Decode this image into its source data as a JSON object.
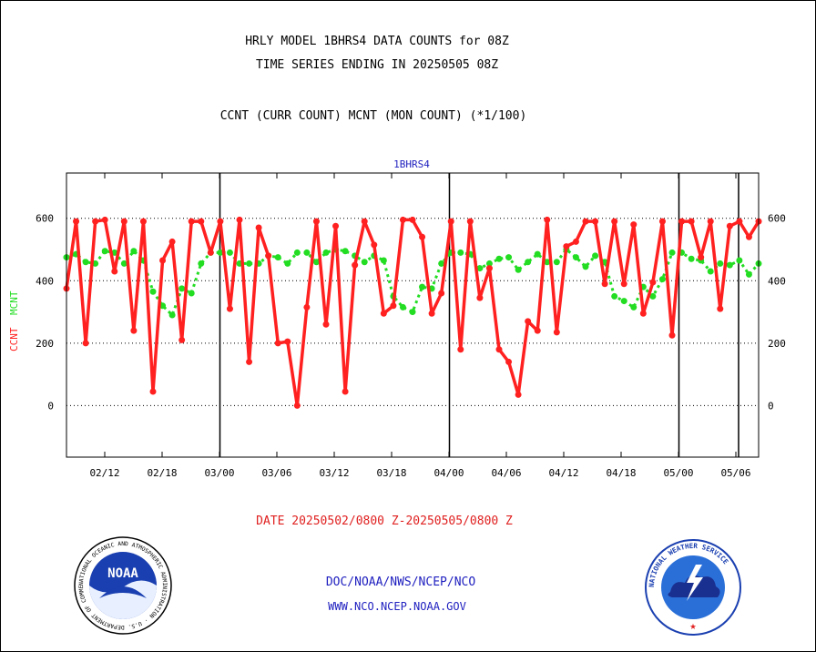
{
  "header": {
    "title_line1": "HRLY MODEL 1BHRS4 DATA COUNTS for 08Z",
    "title_line2": "TIME SERIES ENDING IN 20250505 08Z",
    "subtitle": "CCNT (CURR COUNT) MCNT (MON COUNT) (*1/100)"
  },
  "footer": {
    "date_range": "DATE 20250502/0800 Z-20250505/0800 Z",
    "org_line": "DOC/NOAA/NWS/NCEP/NCO",
    "url_line": "WWW.NCO.NCEP.NOAA.GOV"
  },
  "logos": {
    "noaa_text": "NOAA",
    "noaa_ring_text": "NATIONAL OCEANIC AND ATMOSPHERIC ADMINISTRATION · U.S. DEPARTMENT OF COMMERCE",
    "nws_ring_text": "NATIONAL WEATHER SERVICE"
  },
  "colors": {
    "ccnt": "#ff2020",
    "mcnt": "#22dd22",
    "title_blue": "#2020c0",
    "footer_red": "#e02020"
  },
  "chart_data": {
    "type": "line",
    "title": "1BHRS4",
    "ylabel_left": [
      "CCNT",
      "MCNT"
    ],
    "ylim": [
      -165,
      745
    ],
    "yticks": [
      0,
      200,
      400,
      600
    ],
    "grid": "dotted horizontal",
    "xticks": [
      "02/12",
      "02/18",
      "03/00",
      "03/06",
      "03/12",
      "03/18",
      "04/00",
      "04/06",
      "04/12",
      "04/18",
      "05/00",
      "05/06"
    ],
    "day_boundaries": [
      "03/00",
      "04/00",
      "05/00"
    ],
    "series": [
      {
        "name": "CCNT",
        "values": [
          375,
          590,
          200,
          590,
          595,
          430,
          590,
          240,
          590,
          45,
          465,
          525,
          210,
          590,
          590,
          490,
          590,
          310,
          595,
          140,
          570,
          480,
          200,
          205,
          0,
          315,
          590,
          260,
          575,
          45,
          450,
          590,
          515,
          295,
          320,
          595,
          595,
          540,
          295,
          360,
          590,
          180,
          590,
          345,
          440,
          180,
          140,
          35,
          270,
          240,
          595,
          235,
          510,
          525,
          590,
          590,
          390,
          590,
          390,
          580,
          295,
          395,
          590,
          225,
          590,
          590,
          475,
          590,
          310,
          575,
          590,
          540,
          590
        ]
      },
      {
        "name": "MCNT",
        "values": [
          475,
          485,
          460,
          455,
          495,
          490,
          455,
          495,
          465,
          365,
          320,
          290,
          375,
          360,
          455,
          490,
          490,
          490,
          455,
          455,
          455,
          480,
          475,
          455,
          490,
          490,
          460,
          490,
          500,
          495,
          480,
          460,
          480,
          465,
          350,
          315,
          300,
          380,
          375,
          455,
          490,
          490,
          485,
          440,
          455,
          470,
          475,
          435,
          460,
          485,
          460,
          460,
          500,
          475,
          445,
          480,
          460,
          350,
          335,
          315,
          380,
          350,
          405,
          490,
          490,
          470,
          465,
          430,
          455,
          450,
          465,
          420,
          455
        ]
      }
    ]
  }
}
